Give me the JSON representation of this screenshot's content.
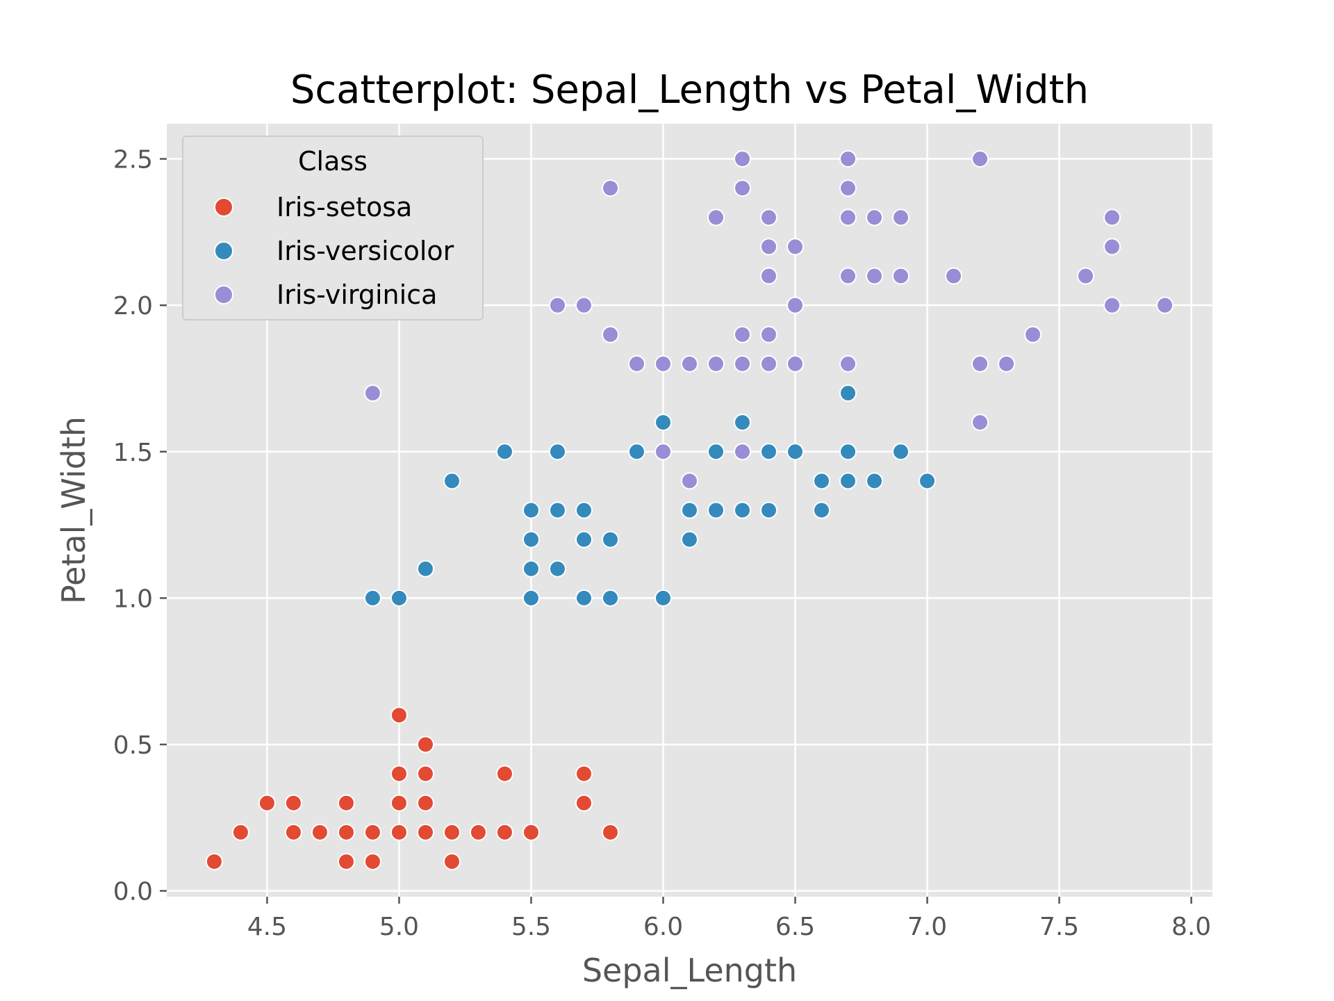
{
  "colors": {
    "Iris-setosa": "#E24A33",
    "Iris-versicolor": "#348ABD",
    "Iris-virginica": "#988ED5",
    "panel": "#E5E5E5",
    "grid": "#FFFFFF"
  },
  "chart_data": {
    "type": "scatter",
    "title": "Scatterplot: Sepal_Length vs Petal_Width",
    "xlabel": "Sepal_Length",
    "ylabel": "Petal_Width",
    "xlim": [
      4.12,
      8.08
    ],
    "ylim": [
      -0.02,
      2.62
    ],
    "xticks": [
      "4.5",
      "5.0",
      "5.5",
      "6.0",
      "6.5",
      "7.0",
      "7.5",
      "8.0"
    ],
    "yticks": [
      "0.0",
      "0.5",
      "1.0",
      "1.5",
      "2.0",
      "2.5"
    ],
    "grid": true,
    "legend": {
      "title": "Class",
      "placement": "top-left"
    },
    "series": [
      {
        "name": "Iris-setosa",
        "points": [
          [
            4.3,
            0.1
          ],
          [
            4.4,
            0.2
          ],
          [
            4.5,
            0.3
          ],
          [
            4.6,
            0.3
          ],
          [
            4.6,
            0.2
          ],
          [
            4.7,
            0.2
          ],
          [
            4.8,
            0.3
          ],
          [
            4.8,
            0.2
          ],
          [
            4.8,
            0.1
          ],
          [
            4.9,
            0.2
          ],
          [
            4.9,
            0.1
          ],
          [
            5.0,
            0.6
          ],
          [
            5.0,
            0.4
          ],
          [
            5.0,
            0.3
          ],
          [
            5.0,
            0.2
          ],
          [
            5.1,
            0.5
          ],
          [
            5.1,
            0.4
          ],
          [
            5.1,
            0.3
          ],
          [
            5.1,
            0.2
          ],
          [
            5.2,
            0.2
          ],
          [
            5.2,
            0.1
          ],
          [
            5.3,
            0.2
          ],
          [
            5.4,
            0.4
          ],
          [
            5.4,
            0.2
          ],
          [
            5.5,
            0.2
          ],
          [
            5.7,
            0.4
          ],
          [
            5.7,
            0.3
          ],
          [
            5.8,
            0.2
          ]
        ]
      },
      {
        "name": "Iris-versicolor",
        "points": [
          [
            4.9,
            1.0
          ],
          [
            5.0,
            1.0
          ],
          [
            5.1,
            1.1
          ],
          [
            5.2,
            1.4
          ],
          [
            5.4,
            1.5
          ],
          [
            5.5,
            1.3
          ],
          [
            5.5,
            1.2
          ],
          [
            5.5,
            1.1
          ],
          [
            5.5,
            1.0
          ],
          [
            5.6,
            1.5
          ],
          [
            5.6,
            1.3
          ],
          [
            5.6,
            1.1
          ],
          [
            5.7,
            1.3
          ],
          [
            5.7,
            1.2
          ],
          [
            5.7,
            1.0
          ],
          [
            5.8,
            1.2
          ],
          [
            5.8,
            1.0
          ],
          [
            5.9,
            1.5
          ],
          [
            6.0,
            1.6
          ],
          [
            6.0,
            1.0
          ],
          [
            6.1,
            1.3
          ],
          [
            6.1,
            1.2
          ],
          [
            6.2,
            1.5
          ],
          [
            6.2,
            1.3
          ],
          [
            6.3,
            1.6
          ],
          [
            6.3,
            1.3
          ],
          [
            6.4,
            1.5
          ],
          [
            6.4,
            1.3
          ],
          [
            6.5,
            1.5
          ],
          [
            6.6,
            1.4
          ],
          [
            6.6,
            1.3
          ],
          [
            6.7,
            1.7
          ],
          [
            6.7,
            1.5
          ],
          [
            6.7,
            1.4
          ],
          [
            6.8,
            1.4
          ],
          [
            6.9,
            1.5
          ],
          [
            7.0,
            1.4
          ]
        ]
      },
      {
        "name": "Iris-virginica",
        "points": [
          [
            4.9,
            1.7
          ],
          [
            5.6,
            2.0
          ],
          [
            5.7,
            2.0
          ],
          [
            5.8,
            2.4
          ],
          [
            5.8,
            1.9
          ],
          [
            5.9,
            1.8
          ],
          [
            6.0,
            1.8
          ],
          [
            6.0,
            1.5
          ],
          [
            6.1,
            1.8
          ],
          [
            6.1,
            1.4
          ],
          [
            6.2,
            2.3
          ],
          [
            6.2,
            1.8
          ],
          [
            6.3,
            2.5
          ],
          [
            6.3,
            2.4
          ],
          [
            6.3,
            1.9
          ],
          [
            6.3,
            1.8
          ],
          [
            6.3,
            1.5
          ],
          [
            6.4,
            2.3
          ],
          [
            6.4,
            2.2
          ],
          [
            6.4,
            2.1
          ],
          [
            6.4,
            1.9
          ],
          [
            6.4,
            1.8
          ],
          [
            6.5,
            2.2
          ],
          [
            6.5,
            2.0
          ],
          [
            6.5,
            1.8
          ],
          [
            6.7,
            2.5
          ],
          [
            6.7,
            2.4
          ],
          [
            6.7,
            2.3
          ],
          [
            6.7,
            2.1
          ],
          [
            6.7,
            1.8
          ],
          [
            6.8,
            2.3
          ],
          [
            6.8,
            2.1
          ],
          [
            6.9,
            2.3
          ],
          [
            6.9,
            2.1
          ],
          [
            7.1,
            2.1
          ],
          [
            7.2,
            2.5
          ],
          [
            7.2,
            1.8
          ],
          [
            7.2,
            1.6
          ],
          [
            7.3,
            1.8
          ],
          [
            7.4,
            1.9
          ],
          [
            7.6,
            2.1
          ],
          [
            7.7,
            2.3
          ],
          [
            7.7,
            2.2
          ],
          [
            7.7,
            2.0
          ],
          [
            7.9,
            2.0
          ]
        ]
      }
    ]
  }
}
